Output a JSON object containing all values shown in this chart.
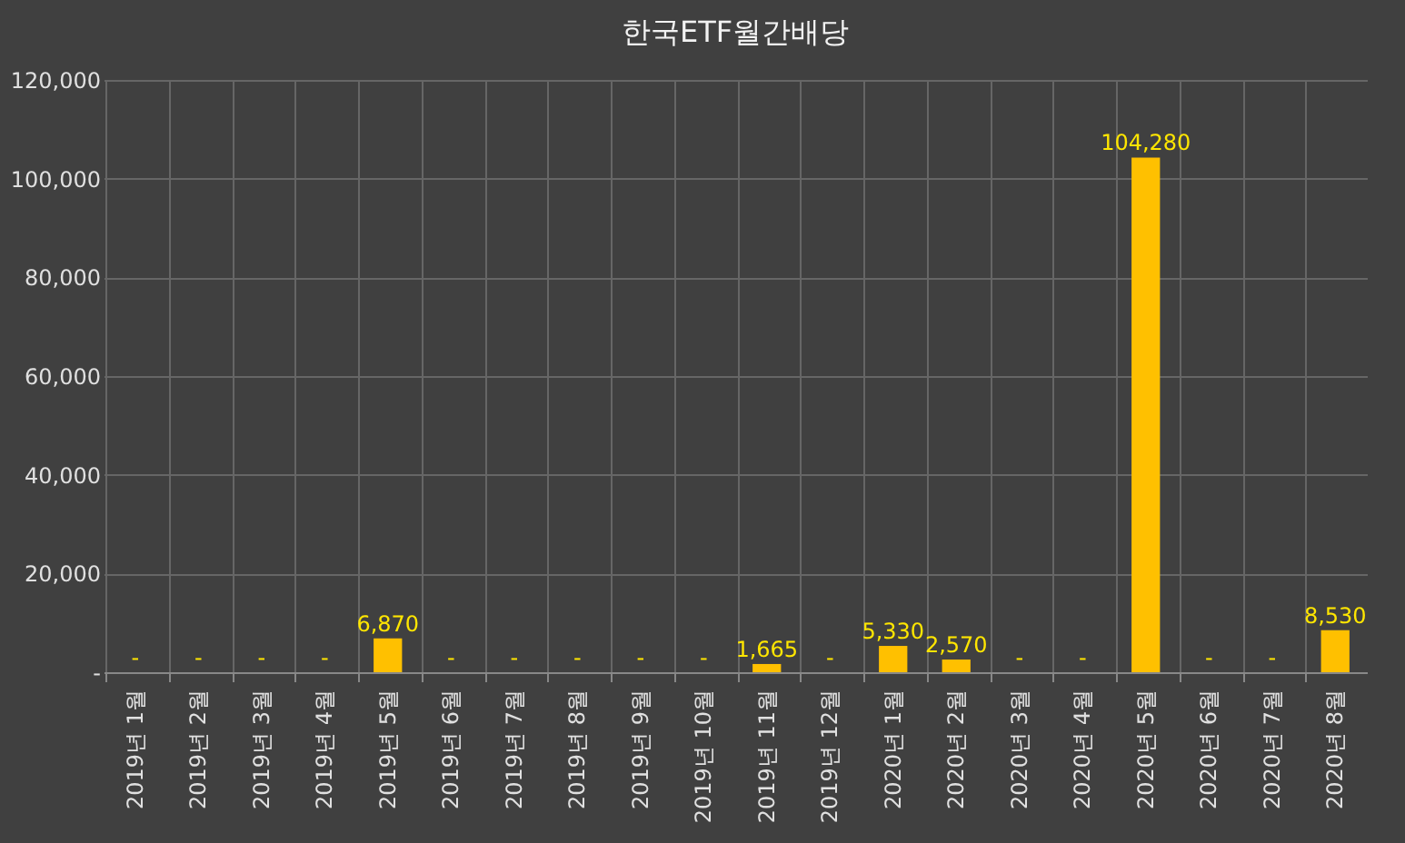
{
  "chart_data": {
    "type": "bar",
    "title": "한국ETF월간배당",
    "categories": [
      "2019년 1월",
      "2019년 2월",
      "2019년 3월",
      "2019년 4월",
      "2019년 5월",
      "2019년 6월",
      "2019년 7월",
      "2019년 8월",
      "2019년 9월",
      "2019년 10월",
      "2019년 11월",
      "2019년 12월",
      "2020년 1월",
      "2020년 2월",
      "2020년 3월",
      "2020년 4월",
      "2020년 5월",
      "2020년 6월",
      "2020년 7월",
      "2020년 8월"
    ],
    "values": [
      0,
      0,
      0,
      0,
      6870,
      0,
      0,
      0,
      0,
      0,
      1665,
      0,
      5330,
      2570,
      0,
      0,
      104280,
      0,
      0,
      8530
    ],
    "value_labels": [
      "-",
      "-",
      "-",
      "-",
      "6,870",
      "-",
      "-",
      "-",
      "-",
      "-",
      "1,665",
      "-",
      "5,330",
      "2,570",
      "-",
      "-",
      "104,280",
      "-",
      "-",
      "8,530"
    ],
    "color": "#ffc000",
    "ylim": [
      0,
      120000
    ],
    "yticks": [
      {
        "value": 0,
        "label": "-"
      },
      {
        "value": 20000,
        "label": "20,000"
      },
      {
        "value": 40000,
        "label": "40,000"
      },
      {
        "value": 60000,
        "label": "60,000"
      },
      {
        "value": 80000,
        "label": "80,000"
      },
      {
        "value": 100000,
        "label": "100,000"
      },
      {
        "value": 120000,
        "label": "120,000"
      }
    ],
    "grid": true
  }
}
